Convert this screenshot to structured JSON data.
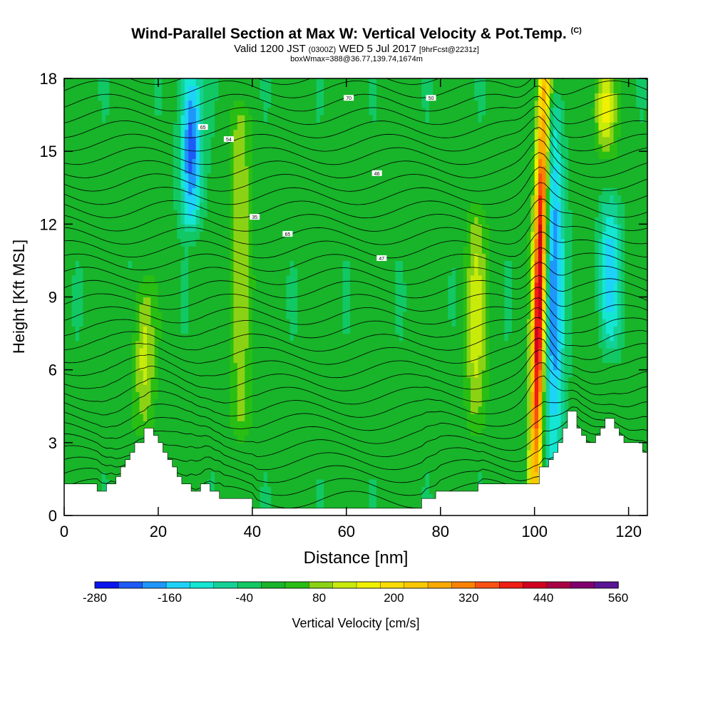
{
  "header": {
    "title": "Wind-Parallel Section at Max W: Vertical Velocity & Pot.Temp.",
    "copyright": "(C)",
    "valid_pre": "Valid 1200 JST",
    "valid_utc": "(0300Z)",
    "valid_post": "WED 5 Jul 2017",
    "forecast": "[9hrFcst@2231z]",
    "subtitle2": "boxWmax=388@36.77,139.74,1674m"
  },
  "chart_data": {
    "type": "heatmap",
    "title": "Wind-Parallel Section at Max W: Vertical Velocity & Pot.Temp.",
    "xlabel": "Distance [nm]",
    "ylabel": "Height [Kft MSL]",
    "xlim": [
      0,
      124
    ],
    "ylim": [
      0,
      18
    ],
    "x_ticks": [
      0,
      20,
      40,
      60,
      80,
      100,
      120
    ],
    "y_ticks": [
      0,
      3,
      6,
      9,
      12,
      15,
      18
    ],
    "colorbar": {
      "label": "Vertical Velocity [cm/s]",
      "tick_values": [
        -280,
        -160,
        -40,
        80,
        200,
        320,
        440,
        560
      ],
      "tick_labels": [
        "-280",
        "-160",
        "-40",
        "80",
        "200",
        "320",
        "440",
        "560"
      ],
      "levels": [
        -280,
        -240,
        -200,
        -160,
        -120,
        -80,
        -40,
        0,
        40,
        80,
        120,
        160,
        200,
        240,
        280,
        320,
        360,
        400,
        440,
        480,
        520,
        560
      ],
      "colors": [
        "#0a14f0",
        "#1e5af8",
        "#1e96fa",
        "#1ed2fa",
        "#14e6d2",
        "#14d296",
        "#12c864",
        "#18b42a",
        "#28be14",
        "#8cd214",
        "#c8eb0a",
        "#f0f000",
        "#fadc00",
        "#fac800",
        "#faaa00",
        "#fa8200",
        "#fa5014",
        "#f01e14",
        "#d2001e",
        "#aa0046",
        "#82006e",
        "#5a1496"
      ]
    },
    "velocity_features": [
      {
        "kind": "updraft_core",
        "x": 101,
        "y_bottom": 1.0,
        "y_top": 18,
        "w_max_cm_s": 480
      },
      {
        "kind": "downdraft",
        "x": 27,
        "y_bottom": 12.5,
        "y_top": 18,
        "w_min_cm_s": -240
      },
      {
        "kind": "downdraft",
        "x": 104,
        "y_bottom": 2.5,
        "y_top": 16.5,
        "w_min_cm_s": -200
      },
      {
        "kind": "downdraft",
        "x": 116,
        "y_bottom": 7.5,
        "y_top": 12.5,
        "w_min_cm_s": -160
      },
      {
        "kind": "updraft",
        "x": 37.5,
        "y_bottom": 4,
        "y_top": 16,
        "w_max_cm_s": 120
      },
      {
        "kind": "updraft",
        "x": 17,
        "y_bottom": 4,
        "y_top": 9,
        "w_max_cm_s": 120
      },
      {
        "kind": "updraft",
        "x": 87.5,
        "y_bottom": 4,
        "y_top": 12,
        "w_max_cm_s": 120
      },
      {
        "kind": "updraft",
        "x": 115,
        "y_bottom": 15.5,
        "y_top": 18,
        "w_max_cm_s": 160
      }
    ],
    "terrain": {
      "x": [
        0,
        6,
        7,
        8,
        9,
        10,
        11,
        12,
        13,
        14,
        15,
        17,
        18,
        19,
        20,
        21,
        22,
        23,
        24,
        25,
        26,
        27,
        28,
        29,
        30,
        31,
        33,
        36,
        37,
        39,
        40,
        48,
        49,
        50,
        75,
        76,
        78,
        79,
        80,
        81,
        87,
        88,
        98,
        99,
        100,
        101,
        103,
        104,
        105,
        106,
        107,
        108,
        109,
        110,
        111,
        112,
        113,
        114,
        115,
        116,
        117,
        118,
        119,
        120,
        121,
        123,
        124
      ],
      "height_kft": [
        1.3,
        1.3,
        1.0,
        1.0,
        1.3,
        1.3,
        1.6,
        2.0,
        2.3,
        2.6,
        3.0,
        3.6,
        3.6,
        3.3,
        3.0,
        2.6,
        2.3,
        2.0,
        1.6,
        1.3,
        1.3,
        1.0,
        1.0,
        1.3,
        1.3,
        1.0,
        0.7,
        0.7,
        0.7,
        0.7,
        0.3,
        0.3,
        0.3,
        0.3,
        0.3,
        0.7,
        0.7,
        1.0,
        1.0,
        1.0,
        1.0,
        1.3,
        1.3,
        1.3,
        1.3,
        2.0,
        2.3,
        2.6,
        3.0,
        3.6,
        4.3,
        4.3,
        3.6,
        3.3,
        3.0,
        3.0,
        3.3,
        3.6,
        4.0,
        4.0,
        3.6,
        3.3,
        3.0,
        3.0,
        3.0,
        2.6,
        2.6
      ]
    },
    "theta_contour_labels": [
      {
        "x": 29.5,
        "y": 16,
        "text": "65"
      },
      {
        "x": 35,
        "y": 15.5,
        "text": "54"
      },
      {
        "x": 60.5,
        "y": 17.2,
        "text": "70"
      },
      {
        "x": 78,
        "y": 17.2,
        "text": "50"
      },
      {
        "x": 40.5,
        "y": 12.3,
        "text": "35"
      },
      {
        "x": 47.5,
        "y": 11.6,
        "text": "65"
      },
      {
        "x": 66.5,
        "y": 14.1,
        "text": "46"
      },
      {
        "x": 67.5,
        "y": 10.6,
        "text": "47"
      }
    ]
  },
  "colorbar_labels": [
    "-280",
    "-160",
    "-40",
    "80",
    "200",
    "320",
    "440",
    "560"
  ]
}
